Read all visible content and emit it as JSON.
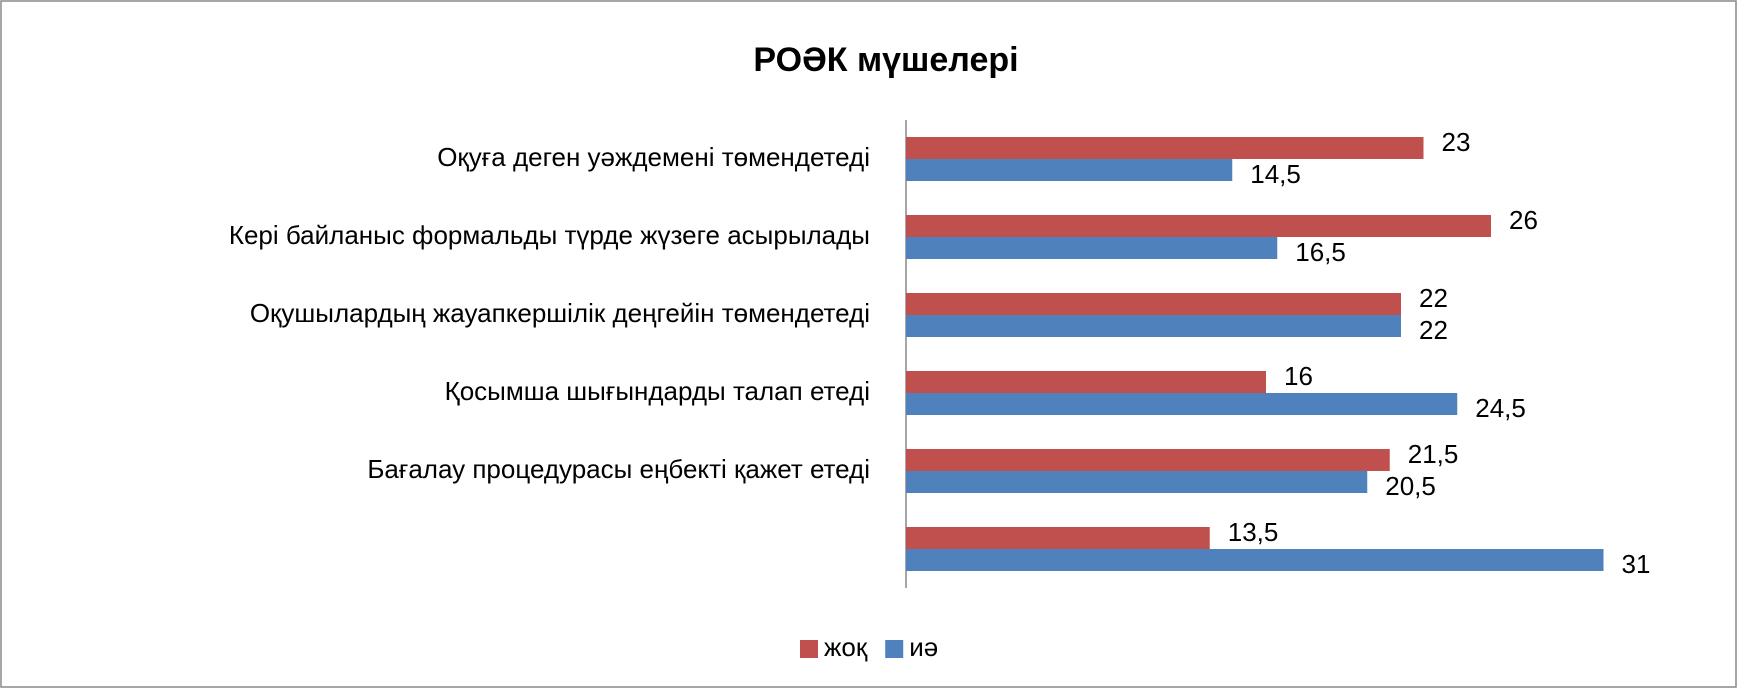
{
  "chart_data": {
    "type": "bar",
    "orientation": "horizontal",
    "title": "РОӘК мүшелері",
    "categories": [
      "Оқуға деген уәждемені төмендетеді",
      "Кері байланыс формальды түрде жүзеге асырылады",
      "Оқушылардың жауапкершілік деңгейін төмендетеді",
      "Қосымша шығындарды талап етеді",
      "Бағалау процедурасы еңбекті қажет етеді",
      null
    ],
    "series": [
      {
        "name": "жоқ",
        "color": "#c0504d",
        "values": [
          23,
          26,
          22,
          16,
          21.5,
          13.5
        ],
        "value_labels": [
          "23",
          "26",
          "22",
          "16",
          "21,5",
          "13,5"
        ]
      },
      {
        "name": "иә",
        "color": "#4f81bd",
        "values": [
          14.5,
          16.5,
          22,
          24.5,
          20.5,
          31
        ],
        "value_labels": [
          "14,5",
          "16,5",
          "22",
          "24,5",
          "20,5",
          "31"
        ]
      }
    ],
    "legend": "bottom"
  }
}
